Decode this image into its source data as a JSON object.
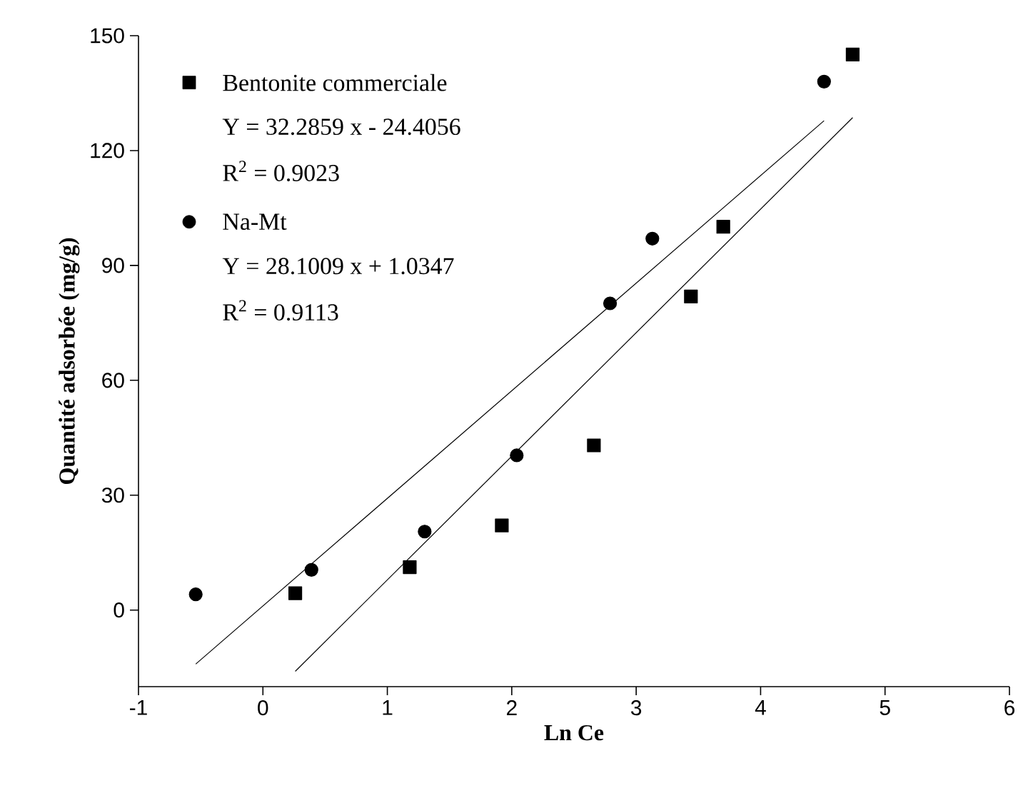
{
  "chart_data": {
    "type": "scatter",
    "xlabel": "Ln Ce",
    "ylabel": "Quantité adsorbée (mg/g)",
    "xlim": [
      -1,
      6
    ],
    "xticks": [
      -1,
      0,
      1,
      2,
      3,
      4,
      5,
      6
    ],
    "ylim": [
      -20,
      150
    ],
    "yticks": [
      0,
      30,
      60,
      90,
      120,
      150
    ],
    "series": [
      {
        "name": "Bentonite commerciale",
        "marker": "square",
        "color": "#000000",
        "x": [
          0.26,
          1.18,
          1.92,
          2.66,
          3.44,
          3.7,
          4.74
        ],
        "values": [
          4.4,
          11.2,
          22.1,
          43.0,
          81.9,
          100.1,
          145.1
        ]
      },
      {
        "name": "Na-Mt",
        "marker": "circle",
        "color": "#000000",
        "x": [
          -0.54,
          0.39,
          1.3,
          2.04,
          2.79,
          3.13,
          4.51
        ],
        "values": [
          4.1,
          10.5,
          20.5,
          40.4,
          80.1,
          97.0,
          138.0
        ]
      },
      {
        "type": "line",
        "marker": "none",
        "color": "#000000",
        "x": [
          0.26,
          4.74
        ],
        "values": [
          -16.0,
          128.6
        ]
      },
      {
        "type": "line",
        "marker": "none",
        "color": "#000000",
        "x": [
          -0.54,
          4.51
        ],
        "values": [
          -14.1,
          127.8
        ]
      }
    ],
    "annotations": [
      "Y = 32.2859 x - 24.4056",
      "R$^{2}$ = 0.9023",
      "Y = 28.1009 x + 1.0347",
      "R$^{2}$ = 0.9113"
    ],
    "legend": "top left",
    "grid": false
  }
}
